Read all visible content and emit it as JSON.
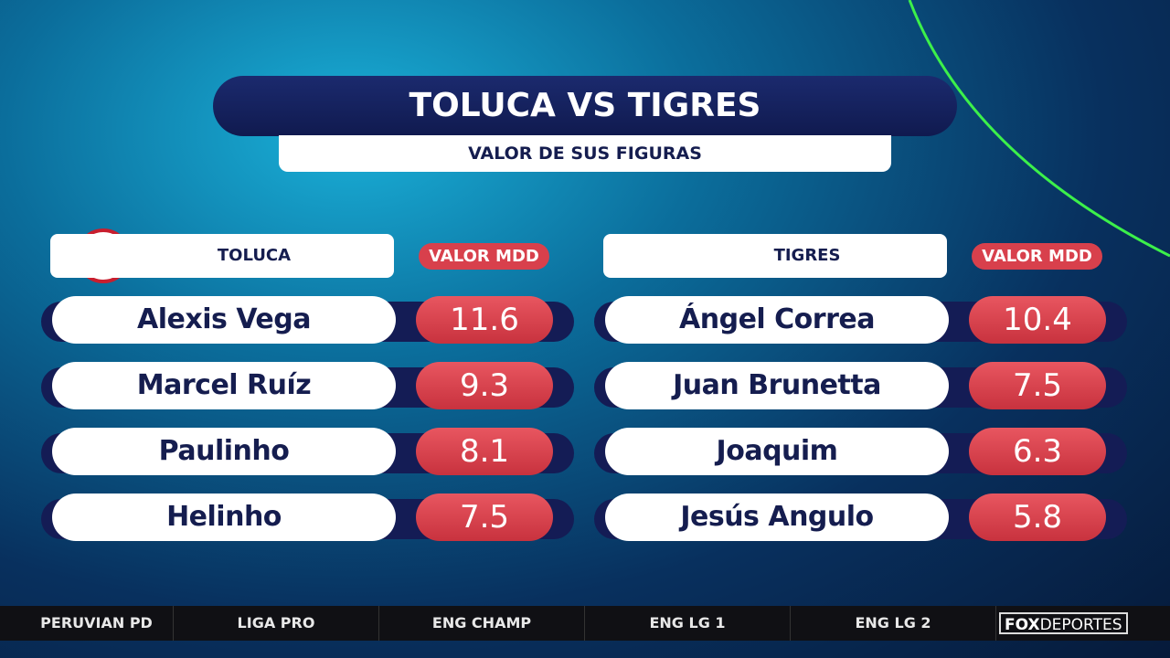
{
  "header": {
    "title": "TOLUCA VS TIGRES",
    "subtitle": "VALOR DE SUS FIGURAS"
  },
  "teams": [
    {
      "name": "TOLUCA",
      "value_header": "VALOR MDD",
      "rows": [
        [
          "Alexis Vega",
          11.6
        ],
        [
          "Marcel Ruíz",
          9.3
        ],
        [
          "Paulinho",
          8.1
        ],
        [
          "Helinho",
          7.5
        ]
      ]
    },
    {
      "name": "TIGRES",
      "value_header": "VALOR MDD",
      "rows": [
        [
          "Ángel Correa",
          10.4
        ],
        [
          "Juan Brunetta",
          7.5
        ],
        [
          "Joaquim",
          6.3
        ],
        [
          "Jesús Angulo",
          5.8
        ]
      ]
    }
  ],
  "ticker": [
    "PERUVIAN PD",
    "LIGA PRO",
    "ENG CHAMP",
    "ENG LG 1",
    "ENG LG 2"
  ],
  "logo": {
    "brand": "FOX",
    "sub": "DEPORTES"
  }
}
